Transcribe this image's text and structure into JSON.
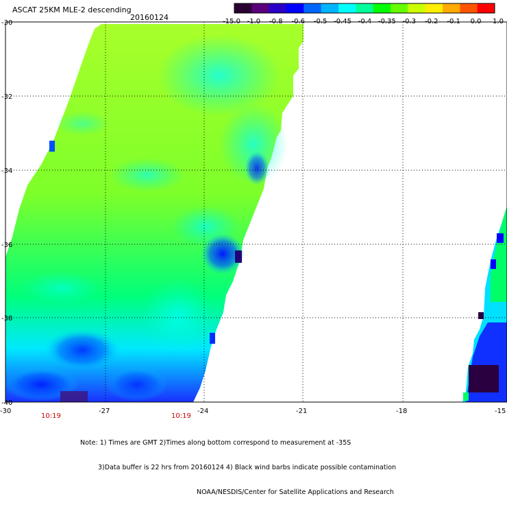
{
  "title": "ASCAT 25KM MLE-2 descending",
  "date": "20160124",
  "colorbar": {
    "labels": [
      "-15.0",
      "-1.0",
      "-0.8",
      "-0.6",
      "-0.5",
      "-0.45",
      "-0.4",
      "-0.35",
      "-0.3",
      "-0.2",
      "-0.1",
      "0.0",
      "1.0"
    ],
    "colors": [
      "#2a0033",
      "#5a007a",
      "#2800c8",
      "#0000ff",
      "#0066ff",
      "#00b4ff",
      "#00ffff",
      "#00ff99",
      "#00ff00",
      "#66ff00",
      "#ccff00",
      "#ffee00",
      "#ffaa00",
      "#ff5500",
      "#ff0000"
    ]
  },
  "map": {
    "lat_labels": [
      "-30",
      "-32",
      "-34",
      "-36",
      "-38",
      "-40"
    ],
    "lon_labels": [
      "-30",
      "-27",
      "-24",
      "-21",
      "-18",
      "-15"
    ],
    "time_labels": [
      "10:19",
      "10:19"
    ]
  },
  "note": {
    "line1": "Note: 1) Times are GMT 2)Times along bottom correspond to measurement at -35S",
    "line2": "3)Data buffer is 22 hrs from 20160124 4) Black wind barbs indicate possible contamination",
    "line3": "NOAA/NESDIS/Center for Satellite Applications and Research"
  }
}
